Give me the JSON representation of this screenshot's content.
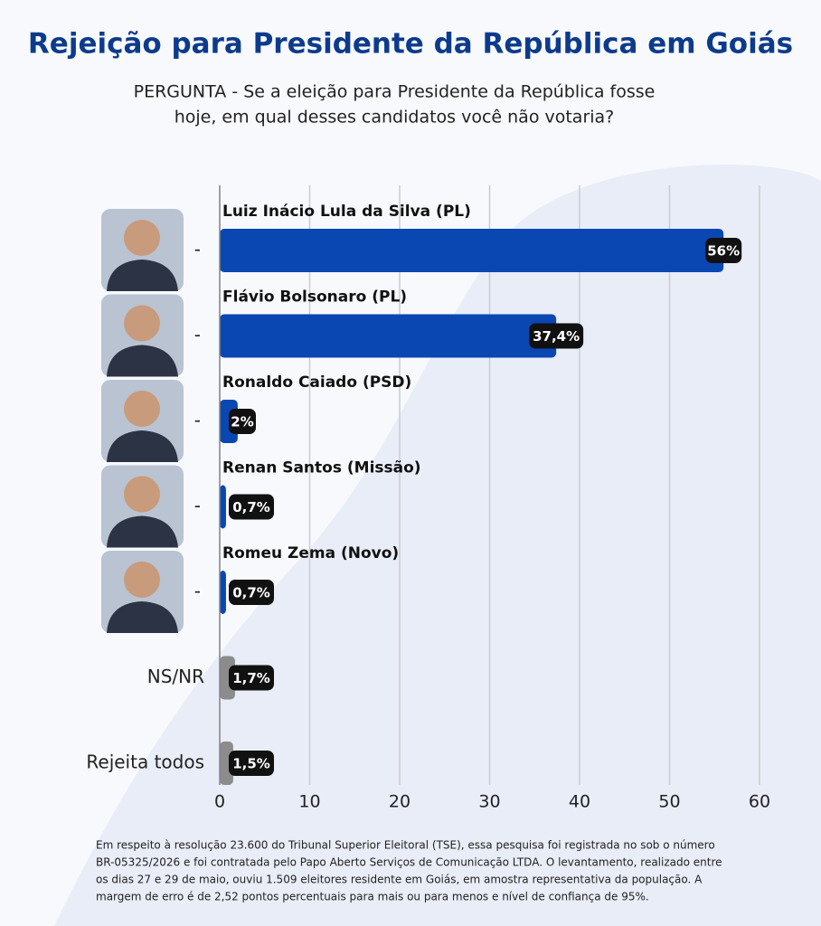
{
  "chart_data": {
    "type": "hbar",
    "title": "Rejeição para Presidente da República em Goiás",
    "subtitle_lines": [
      "PERGUNTA - Se a eleição para Presidente da República fosse",
      "hoje, em qual desses candidatos você não votaria?"
    ],
    "categories": [
      "-",
      "-",
      "-",
      "-",
      "-",
      "NS/NR",
      "Rejeita todos"
    ],
    "bar_titles": [
      "Luiz Inácio Lula da Silva (PL)",
      "Flávio Bolsonaro (PL)",
      "Ronaldo Caiado  (PSD)",
      "Renan Santos (Missão)",
      "Romeu Zema (Novo)",
      null,
      null
    ],
    "values": [
      56,
      37.4,
      2,
      0.7,
      0.7,
      1.7,
      1.5
    ],
    "value_labels": [
      "56%",
      "37,4%",
      "2%",
      "0,7%",
      "0,7%",
      "1,7%",
      "1,5%"
    ],
    "colors": [
      "#0b47b3",
      "#0b47b3",
      "#0b47b3",
      "#0b47b3",
      "#0b47b3",
      "#8c8c8c",
      "#8c8c8c"
    ],
    "xlim": [
      0,
      60
    ],
    "xticks": [
      0,
      10,
      20,
      30,
      40,
      50,
      60
    ],
    "grid": true,
    "footnote_lines": [
      "Em respeito à resolução 23.600 do Tribunal Superior Eleitoral (TSE), essa pesquisa foi registrada no sob o número",
      "BR-05325/2026 e foi contratada pelo Papo Aberto Serviços de Comunicação LTDA. O levantamento, realizado entre",
      "os dias 27 e 29 de maio, ouviu 1.509 eleitores residente em Goiás, em amostra representativa da população. A",
      "margem de erro é de 2,52 pontos percentuais para mais ou para menos e nível de confiança de 95%."
    ]
  }
}
